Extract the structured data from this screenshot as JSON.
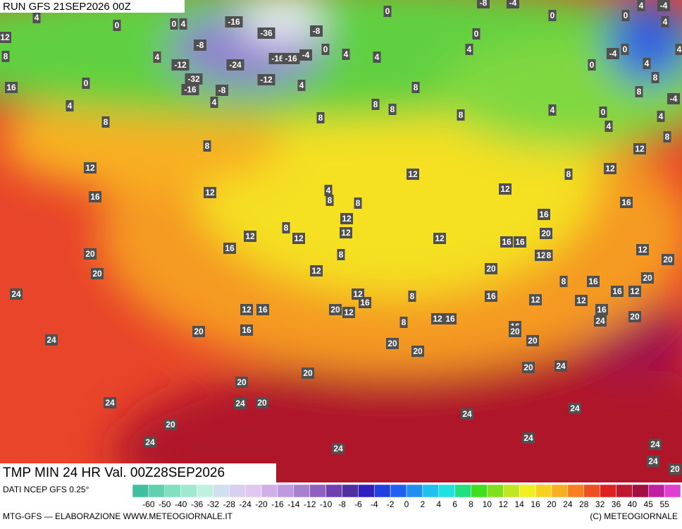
{
  "header": {
    "run": "RUN GFS 21SEP2026 00Z",
    "title": "TMP MIN 24 HR Val. 00Z28SEP2026"
  },
  "map_labels": [
    16,
    8,
    12,
    4,
    0,
    0,
    4,
    -16,
    -36,
    -8,
    -8,
    4,
    -12,
    -24,
    -16,
    -16,
    -4,
    0,
    4,
    0,
    4,
    -32,
    -16,
    -8,
    -12,
    4,
    4,
    0,
    4,
    8,
    8,
    8,
    8,
    8,
    8,
    8,
    12,
    16,
    12,
    4,
    8,
    8,
    12,
    12,
    12,
    8,
    12,
    12,
    16,
    8,
    12,
    12,
    8,
    16,
    20,
    16,
    16,
    12,
    8,
    20,
    20,
    24,
    12,
    20,
    12,
    16,
    8,
    16,
    8,
    16,
    16,
    12,
    12,
    12,
    12,
    16,
    20,
    12,
    8,
    12,
    16,
    16,
    20,
    16,
    24,
    20,
    20,
    16,
    24,
    20,
    20,
    20,
    20,
    24,
    20,
    20,
    24,
    20,
    24,
    20,
    24,
    24,
    24,
    24,
    24,
    24,
    24,
    20,
    4,
    -4,
    4,
    0,
    0,
    -8,
    -4,
    0,
    4,
    0,
    -4,
    0,
    4,
    8,
    4,
    8,
    -4,
    0,
    4,
    4,
    8,
    12,
    12,
    16,
    12,
    20,
    20,
    4
  ],
  "legend": {
    "caption": "DATI NCEP GFS 0.25°",
    "labels": [
      -60,
      -50,
      -40,
      -36,
      -32,
      -28,
      -24,
      -20,
      -16,
      -14,
      -12,
      -10,
      -8,
      -6,
      -4,
      -2,
      0,
      2,
      4,
      6,
      8,
      10,
      12,
      14,
      16,
      20,
      24,
      28,
      32,
      36,
      40,
      45,
      55
    ],
    "colors": [
      "#40c0a0",
      "#60d0b0",
      "#80e0c0",
      "#a0e8d0",
      "#c0f0e0",
      "#d0e0f0",
      "#d8d0f0",
      "#e0c8f0",
      "#d0b0e8",
      "#c098e0",
      "#a880d0",
      "#9060c0",
      "#7040b0",
      "#5030a0",
      "#3020c0",
      "#2040e0",
      "#2060f0",
      "#2090f0",
      "#20c0f0",
      "#20e0e0",
      "#20e080",
      "#40e020",
      "#80e020",
      "#c0e820",
      "#f0f020",
      "#f8d020",
      "#f8b020",
      "#f88020",
      "#f05020",
      "#e02020",
      "#c01830",
      "#a01040",
      "#c020a0",
      "#e040d0"
    ]
  },
  "footer": {
    "left": "MTG-GFS — ELABORAZIONE WWW.METEOGIORNALE.IT",
    "right": "(C) METEOGIORNALE"
  }
}
